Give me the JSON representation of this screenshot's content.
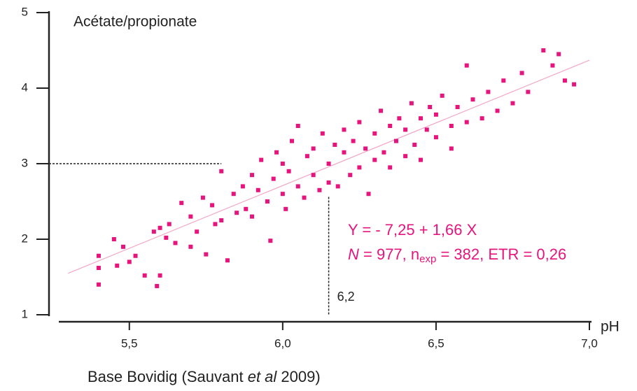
{
  "chart_data": {
    "type": "scatter",
    "title": "Acétate/propionate",
    "x_label": "pH",
    "source": [
      "Base Bovidig (Sauvant ",
      "et al",
      "  2009)"
    ],
    "equation": "Y = - 7,25 + 1,66 X",
    "stats": [
      "N",
      " = 977, n",
      "exp",
      " = 382, ETR = 0,26"
    ],
    "regression": {
      "intercept": -7.25,
      "slope": 1.66,
      "x_range": [
        5.3,
        7.0
      ],
      "color": "#f3a6c6"
    },
    "guides": {
      "y": 3,
      "y_x_end": 5.8,
      "x": 6.15,
      "x_y_end": 2.56,
      "x_label": "6,2"
    },
    "xlim": [
      5.27,
      7.0
    ],
    "ylim": [
      1,
      5
    ],
    "xticks": [
      {
        "value": 5.5,
        "label": "5,5"
      },
      {
        "value": 6.0,
        "label": "6,0"
      },
      {
        "value": 6.5,
        "label": "6,5"
      },
      {
        "value": 7.0,
        "label": "7,0"
      }
    ],
    "yticks": [
      1,
      2,
      3,
      4,
      5
    ],
    "x": [
      5.4,
      5.4,
      5.4,
      5.45,
      5.46,
      5.48,
      5.5,
      5.52,
      5.55,
      5.58,
      5.59,
      5.6,
      5.6,
      5.62,
      5.63,
      5.65,
      5.67,
      5.7,
      5.7,
      5.72,
      5.74,
      5.75,
      5.77,
      5.78,
      5.8,
      5.8,
      5.82,
      5.84,
      5.85,
      5.87,
      5.88,
      5.9,
      5.9,
      5.92,
      5.93,
      5.95,
      5.96,
      5.97,
      5.98,
      6.0,
      6.0,
      6.01,
      6.02,
      6.03,
      6.05,
      6.05,
      6.07,
      6.08,
      6.1,
      6.1,
      6.12,
      6.13,
      6.15,
      6.15,
      6.17,
      6.18,
      6.2,
      6.2,
      6.22,
      6.23,
      6.25,
      6.25,
      6.27,
      6.28,
      6.3,
      6.3,
      6.32,
      6.33,
      6.35,
      6.35,
      6.37,
      6.38,
      6.4,
      6.4,
      6.42,
      6.43,
      6.45,
      6.45,
      6.47,
      6.48,
      6.5,
      6.5,
      6.52,
      6.55,
      6.55,
      6.57,
      6.6,
      6.6,
      6.62,
      6.65,
      6.67,
      6.7,
      6.72,
      6.75,
      6.78,
      6.8,
      6.85,
      6.88,
      6.9,
      6.92,
      6.95
    ],
    "series": [
      {
        "color": "#e6147d",
        "values": [
          1.4,
          1.62,
          1.78,
          2.0,
          1.65,
          1.9,
          1.7,
          1.78,
          1.52,
          2.1,
          1.38,
          1.52,
          2.15,
          2.02,
          2.2,
          1.95,
          2.48,
          2.3,
          1.9,
          2.1,
          2.55,
          1.8,
          2.45,
          2.2,
          2.9,
          2.25,
          1.72,
          2.6,
          2.35,
          2.7,
          2.4,
          2.85,
          2.3,
          2.65,
          3.05,
          2.5,
          1.98,
          2.8,
          3.15,
          2.6,
          3.0,
          2.4,
          2.9,
          3.3,
          2.7,
          3.5,
          2.55,
          3.1,
          2.85,
          3.2,
          2.65,
          3.4,
          3.0,
          2.75,
          3.25,
          2.7,
          3.15,
          3.45,
          2.85,
          3.3,
          3.55,
          2.95,
          3.2,
          2.6,
          3.4,
          3.05,
          3.7,
          3.15,
          3.5,
          2.95,
          3.3,
          3.6,
          3.1,
          3.45,
          3.8,
          3.25,
          3.6,
          3.05,
          3.45,
          3.75,
          3.35,
          3.65,
          3.9,
          3.5,
          3.2,
          3.75,
          3.55,
          4.3,
          3.85,
          3.6,
          3.95,
          3.7,
          4.1,
          3.8,
          4.2,
          3.95,
          4.5,
          4.3,
          4.45,
          4.1,
          4.05
        ]
      }
    ]
  }
}
